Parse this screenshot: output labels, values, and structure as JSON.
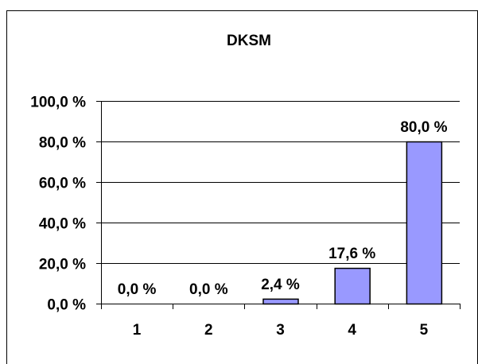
{
  "chart_data": {
    "type": "bar",
    "title": "DKSM",
    "xlabel": "",
    "ylabel": "",
    "categories": [
      "1",
      "2",
      "3",
      "4",
      "5"
    ],
    "values": [
      0.0,
      0.0,
      2.4,
      17.6,
      80.0
    ],
    "data_labels": [
      "0,0 %",
      "0,0 %",
      "2,4 %",
      "17,6 %",
      "80,0 %"
    ],
    "ylim": [
      0,
      100
    ],
    "yticks": [
      0,
      20,
      40,
      60,
      80,
      100
    ],
    "ytick_labels": [
      "0,0 %",
      "20,0 %",
      "40,0 %",
      "60,0 %",
      "80,0 %",
      "100,0 %"
    ],
    "grid": true,
    "legend": "none",
    "bar_color": "#9999FF",
    "bar_edge_color": "#000000"
  }
}
